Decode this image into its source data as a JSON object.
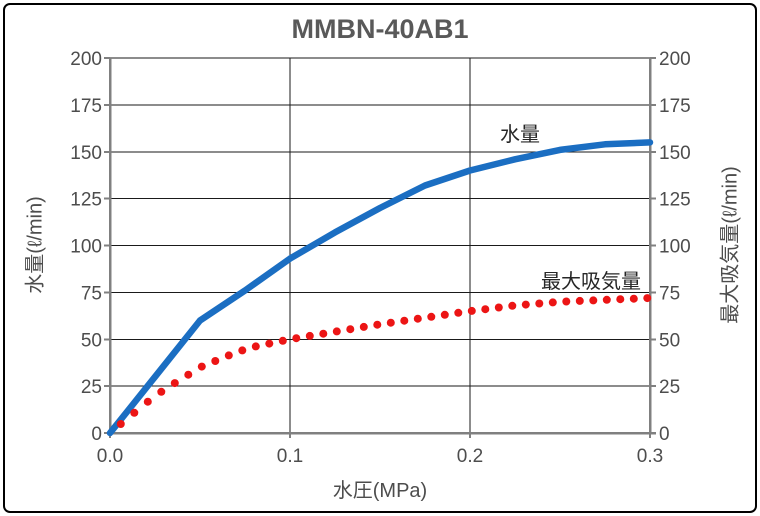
{
  "window": {
    "background": "#ffffff",
    "border_color": "#000000"
  },
  "chart_data": {
    "type": "line",
    "title": "MMBN-40AB1",
    "xlabel": "水圧(MPa)",
    "ylabel_left": "水量(ℓ/min)",
    "ylabel_right": "最大吸気量(ℓ/min)",
    "xlim": [
      0,
      0.3
    ],
    "ylim": [
      0,
      200
    ],
    "x_ticks": [
      0,
      0.1,
      0.2,
      0.3
    ],
    "x_tick_labels": [
      "0.0",
      "0.1",
      "0.2",
      "0.3"
    ],
    "y_ticks": [
      0,
      25,
      50,
      75,
      100,
      125,
      150,
      175,
      200
    ],
    "y_tick_labels": [
      "0",
      "25",
      "50",
      "75",
      "100",
      "125",
      "150",
      "175",
      "200"
    ],
    "grid": true,
    "legend_position": "inline-annotations",
    "colors": {
      "grid": "#1a1a1a",
      "axis": "#808080",
      "tick_text": "#4d4d4d",
      "title_text": "#595959"
    },
    "series": [
      {
        "name": "水量",
        "style": "solid-line",
        "axis": "left",
        "color": "#1b6ec2",
        "line_width": 6.5,
        "points": [
          [
            0,
            0
          ],
          [
            0.025,
            30
          ],
          [
            0.05,
            60
          ],
          [
            0.075,
            76
          ],
          [
            0.1,
            93
          ],
          [
            0.125,
            107
          ],
          [
            0.15,
            120
          ],
          [
            0.175,
            132
          ],
          [
            0.2,
            140
          ],
          [
            0.225,
            146
          ],
          [
            0.25,
            151
          ],
          [
            0.275,
            154
          ],
          [
            0.3,
            155
          ]
        ]
      },
      {
        "name": "最大吸気量",
        "style": "dotted",
        "axis": "right",
        "color": "#ec1515",
        "dot_radius": 4,
        "dot_start": 0.006,
        "dot_spacing": 0.0075,
        "points": [
          [
            0,
            0
          ],
          [
            0.01,
            8
          ],
          [
            0.02,
            16
          ],
          [
            0.03,
            23
          ],
          [
            0.04,
            29
          ],
          [
            0.05,
            35
          ],
          [
            0.06,
            39
          ],
          [
            0.07,
            43
          ],
          [
            0.08,
            46
          ],
          [
            0.09,
            48
          ],
          [
            0.1,
            50
          ],
          [
            0.125,
            54
          ],
          [
            0.15,
            58
          ],
          [
            0.175,
            61.5
          ],
          [
            0.2,
            65
          ],
          [
            0.225,
            68
          ],
          [
            0.25,
            70
          ],
          [
            0.275,
            71
          ],
          [
            0.3,
            72
          ]
        ]
      }
    ]
  }
}
